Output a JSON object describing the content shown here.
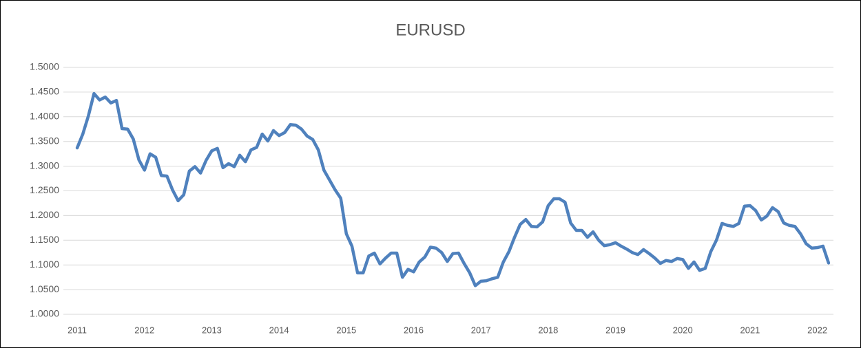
{
  "chart_data": {
    "type": "line",
    "title": "EURUSD",
    "categories": [
      "2011",
      null,
      null,
      null,
      null,
      null,
      null,
      null,
      null,
      null,
      null,
      null,
      "2012",
      null,
      null,
      null,
      null,
      null,
      null,
      null,
      null,
      null,
      null,
      null,
      "2013",
      null,
      null,
      null,
      null,
      null,
      null,
      null,
      null,
      null,
      null,
      null,
      "2014",
      null,
      null,
      null,
      null,
      null,
      null,
      null,
      null,
      null,
      null,
      null,
      "2015",
      null,
      null,
      null,
      null,
      null,
      null,
      null,
      null,
      null,
      null,
      null,
      "2016",
      null,
      null,
      null,
      null,
      null,
      null,
      null,
      null,
      null,
      null,
      null,
      "2017",
      null,
      null,
      null,
      null,
      null,
      null,
      null,
      null,
      null,
      null,
      null,
      "2018",
      null,
      null,
      null,
      null,
      null,
      null,
      null,
      null,
      null,
      null,
      null,
      "2019",
      null,
      null,
      null,
      null,
      null,
      null,
      null,
      null,
      null,
      null,
      null,
      "2020",
      null,
      null,
      null,
      null,
      null,
      null,
      null,
      null,
      null,
      null,
      null,
      "2021",
      null,
      null,
      null,
      null,
      null,
      null,
      null,
      null,
      null,
      null,
      null,
      "2022",
      null,
      null
    ],
    "values": [
      1.337,
      1.365,
      1.402,
      1.447,
      1.434,
      1.44,
      1.428,
      1.433,
      1.376,
      1.375,
      1.355,
      1.313,
      1.292,
      1.325,
      1.318,
      1.281,
      1.28,
      1.252,
      1.23,
      1.242,
      1.29,
      1.299,
      1.286,
      1.312,
      1.331,
      1.336,
      1.297,
      1.305,
      1.299,
      1.322,
      1.309,
      1.333,
      1.338,
      1.365,
      1.351,
      1.372,
      1.362,
      1.368,
      1.384,
      1.383,
      1.375,
      1.361,
      1.354,
      1.333,
      1.292,
      1.272,
      1.252,
      1.235,
      1.163,
      1.138,
      1.084,
      1.084,
      1.118,
      1.124,
      1.102,
      1.114,
      1.124,
      1.124,
      1.075,
      1.091,
      1.086,
      1.106,
      1.116,
      1.136,
      1.134,
      1.125,
      1.107,
      1.123,
      1.124,
      1.103,
      1.084,
      1.058,
      1.067,
      1.068,
      1.072,
      1.075,
      1.106,
      1.127,
      1.156,
      1.182,
      1.192,
      1.178,
      1.177,
      1.187,
      1.22,
      1.234,
      1.234,
      1.227,
      1.185,
      1.17,
      1.17,
      1.156,
      1.167,
      1.15,
      1.139,
      1.141,
      1.145,
      1.138,
      1.132,
      1.125,
      1.121,
      1.131,
      1.123,
      1.114,
      1.103,
      1.109,
      1.107,
      1.113,
      1.111,
      1.093,
      1.106,
      1.089,
      1.093,
      1.127,
      1.15,
      1.184,
      1.18,
      1.178,
      1.184,
      1.219,
      1.22,
      1.21,
      1.191,
      1.199,
      1.216,
      1.208,
      1.185,
      1.18,
      1.178,
      1.163,
      1.143,
      1.134,
      1.135,
      1.138,
      1.104
    ],
    "color": "#4f81bd",
    "ylim": [
      1.0,
      1.5
    ],
    "yticks": [
      {
        "value": 1.0,
        "label": "1.0000"
      },
      {
        "value": 1.05,
        "label": "1.0500"
      },
      {
        "value": 1.1,
        "label": "1.1000"
      },
      {
        "value": 1.15,
        "label": "1.1500"
      },
      {
        "value": 1.2,
        "label": "1.2000"
      },
      {
        "value": 1.25,
        "label": "1.2500"
      },
      {
        "value": 1.3,
        "label": "1.3000"
      },
      {
        "value": 1.35,
        "label": "1.3500"
      },
      {
        "value": 1.4,
        "label": "1.4000"
      },
      {
        "value": 1.45,
        "label": "1.4500"
      },
      {
        "value": 1.5,
        "label": "1.5000"
      }
    ],
    "grid": true
  }
}
